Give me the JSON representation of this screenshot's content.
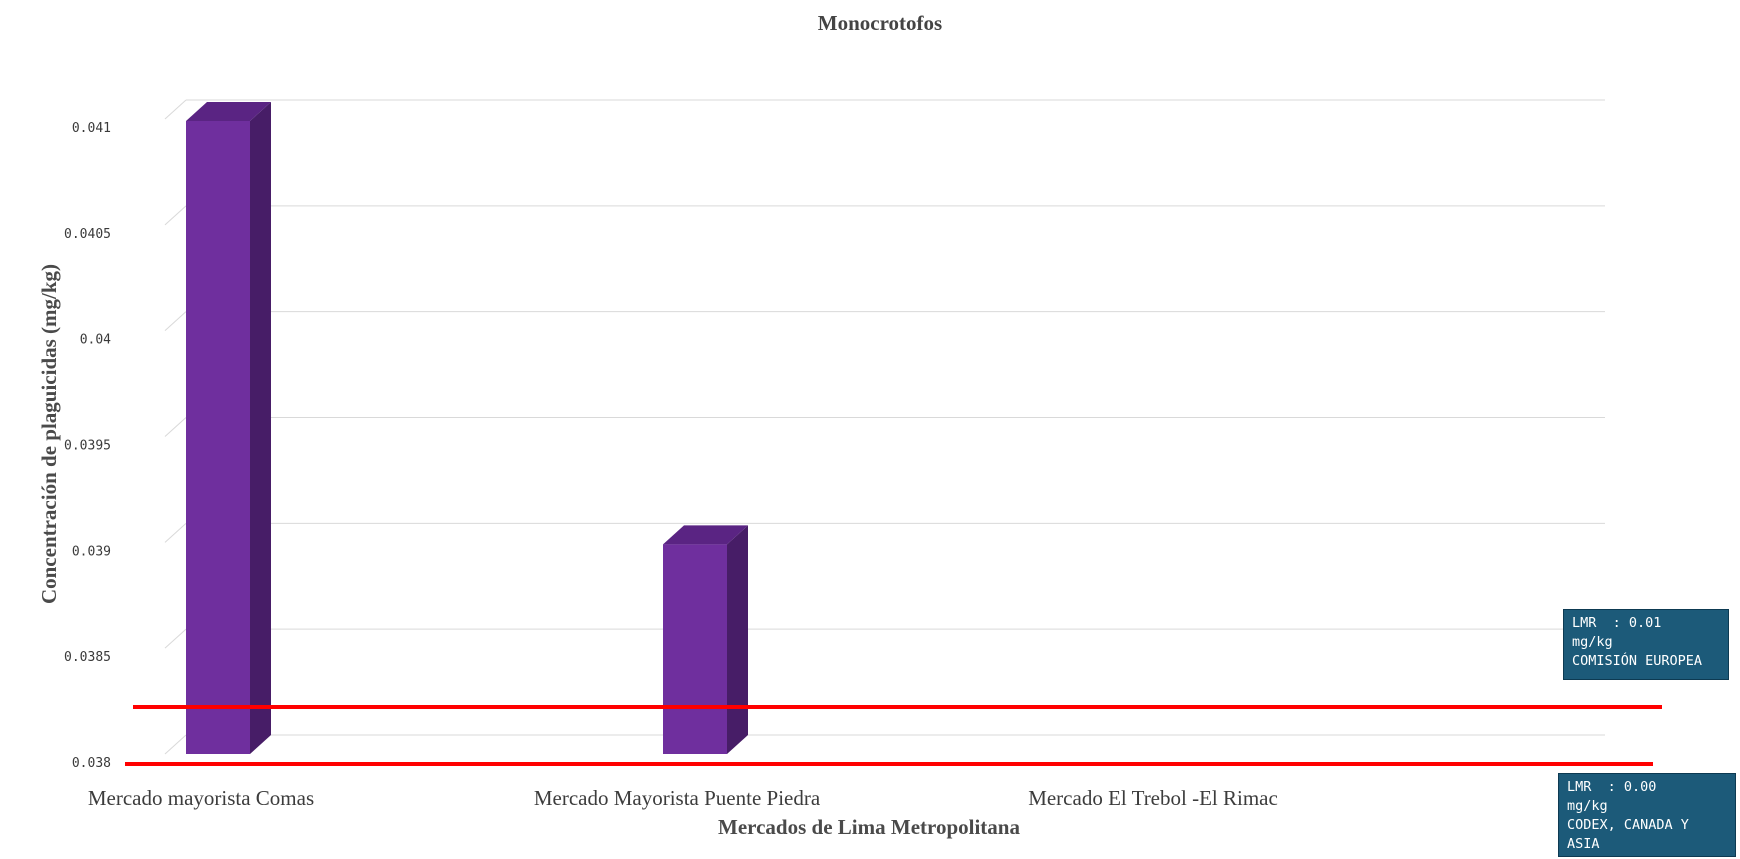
{
  "chart_data": {
    "type": "bar",
    "title": "Monocrotofos",
    "xlabel": "Mercados de Lima Metropolitana",
    "ylabel": "Concentración de plaguicidas (mg/kg)",
    "categories": [
      "Mercado mayorista Comas",
      "Mercado Mayorista Puente Piedra",
      "Mercado El Trebol -El Rimac"
    ],
    "values": [
      0.041,
      0.039,
      null
    ],
    "ylim": [
      0.038,
      0.041
    ],
    "yticks": [
      "0.038",
      "0.0385",
      "0.039",
      "0.0395",
      "0.04",
      "0.0405",
      "0.041"
    ],
    "grid": true,
    "bar_color": "#6f2f9e",
    "bar_side_color": "#471d67",
    "bar_top_color": "#5a2483",
    "reference_line_color": "#ff0000",
    "annotations": [
      {
        "lines": [
          "LMR  : 0.01",
          "mg/kg",
          "COMISIÓN EUROPEA"
        ]
      },
      {
        "lines": [
          "LMR  : 0.00",
          "mg/kg",
          "CODEX, CANADA Y",
          "ASIA"
        ]
      }
    ]
  }
}
